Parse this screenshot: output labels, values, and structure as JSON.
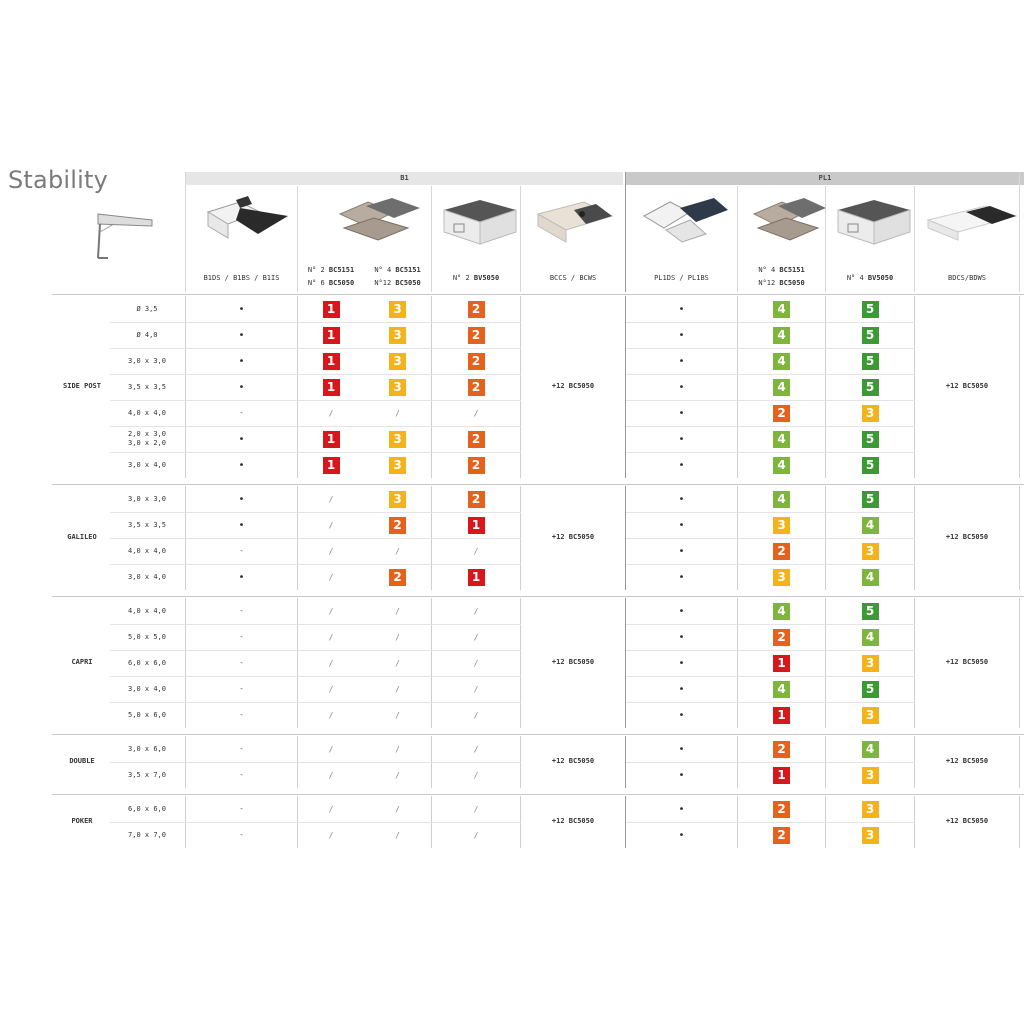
{
  "title": "Stability",
  "colors": {
    "1": "#d9161c",
    "2": "#e4621b",
    "3": "#f4b319",
    "4": "#7db63a",
    "5": "#3c9a34"
  },
  "groups": {
    "b1": "B1",
    "pl1": "PL1"
  },
  "columns": {
    "b1ds": "B1DS / B1BS / B1IS",
    "c2a": "N° 2 ",
    "c2b": "BC5151",
    "c2c": "N° 6 ",
    "c2d": "BC5050",
    "c3a": "N° 4 ",
    "c3b": "BC5151",
    "c3c": "N°12 ",
    "c3d": "BC5050",
    "c4a": "N° 2 ",
    "c4b": "BV5050",
    "bccs": "BCCS / BCWS",
    "pl1ds": "PL1DS / PL1BS",
    "c6a": "N° 4 ",
    "c6b": "BC5151",
    "c6c": "N°12 ",
    "c6d": "BC5050",
    "c7a": "N° 4 ",
    "c7b": "BV5050",
    "bdcs": "BDCS/BDWS"
  },
  "models": [
    {
      "name": "SIDE POST",
      "merged": "+12 BC5050",
      "merged_pl": "+12 BC5050",
      "rows": [
        {
          "size": "Ø 3,5",
          "c1": "•",
          "c2": "1",
          "c3": "3",
          "c4": "2",
          "c5": "•",
          "c6": "4",
          "c7": "5"
        },
        {
          "size": "Ø 4,0",
          "c1": "•",
          "c2": "1",
          "c3": "3",
          "c4": "2",
          "c5": "•",
          "c6": "4",
          "c7": "5"
        },
        {
          "size": "3,0 x 3,0",
          "c1": "•",
          "c2": "1",
          "c3": "3",
          "c4": "2",
          "c5": "•",
          "c6": "4",
          "c7": "5"
        },
        {
          "size": "3,5 x 3,5",
          "c1": "•",
          "c2": "1",
          "c3": "3",
          "c4": "2",
          "c5": "•",
          "c6": "4",
          "c7": "5"
        },
        {
          "size": "4,0 x 4,0",
          "c1": "-",
          "c2": "/",
          "c3": "/",
          "c4": "/",
          "c5": "•",
          "c6": "2",
          "c7": "3"
        },
        {
          "size": "2,0 x 3,0",
          "size2": "3,0 x 2,0",
          "c1": "•",
          "c2": "1",
          "c3": "3",
          "c4": "2",
          "c5": "•",
          "c6": "4",
          "c7": "5"
        },
        {
          "size": "3,0 x 4,0",
          "c1": "•",
          "c2": "1",
          "c3": "3",
          "c4": "2",
          "c5": "•",
          "c6": "4",
          "c7": "5"
        }
      ]
    },
    {
      "name": "GALILEO",
      "merged": "+12 BC5050",
      "merged_pl": "+12 BC5050",
      "rows": [
        {
          "size": "3,0 x 3,0",
          "c1": "•",
          "c2": "/",
          "c3": "3",
          "c4": "2",
          "c5": "•",
          "c6": "4",
          "c7": "5"
        },
        {
          "size": "3,5 x 3,5",
          "c1": "•",
          "c2": "/",
          "c3": "2",
          "c4": "1",
          "c5": "•",
          "c6": "3",
          "c7": "4"
        },
        {
          "size": "4,0 x 4,0",
          "c1": "-",
          "c2": "/",
          "c3": "/",
          "c4": "/",
          "c5": "•",
          "c6": "2",
          "c7": "3"
        },
        {
          "size": "3,0 x 4,0",
          "c1": "•",
          "c2": "/",
          "c3": "2",
          "c4": "1",
          "c5": "•",
          "c6": "3",
          "c7": "4"
        }
      ]
    },
    {
      "name": "CAPRI",
      "merged": "+12 BC5050",
      "merged_pl": "+12 BC5050",
      "rows": [
        {
          "size": "4,0 x 4,0",
          "c1": "-",
          "c2": "/",
          "c3": "/",
          "c4": "/",
          "c5": "•",
          "c6": "4",
          "c7": "5"
        },
        {
          "size": "5,0 x 5,0",
          "c1": "-",
          "c2": "/",
          "c3": "/",
          "c4": "/",
          "c5": "•",
          "c6": "2",
          "c7": "4"
        },
        {
          "size": "6,0 x 6,0",
          "c1": "-",
          "c2": "/",
          "c3": "/",
          "c4": "/",
          "c5": "•",
          "c6": "1",
          "c7": "3"
        },
        {
          "size": "3,0 x 4,0",
          "c1": "-",
          "c2": "/",
          "c3": "/",
          "c4": "/",
          "c5": "•",
          "c6": "4",
          "c7": "5"
        },
        {
          "size": "5,0 x 6,0",
          "c1": "-",
          "c2": "/",
          "c3": "/",
          "c4": "/",
          "c5": "•",
          "c6": "1",
          "c7": "3"
        }
      ]
    },
    {
      "name": "DOUBLE",
      "merged": "+12 BC5050",
      "merged_pl": "+12 BC5050",
      "rows": [
        {
          "size": "3,0 x 6,0",
          "c1": "-",
          "c2": "/",
          "c3": "/",
          "c4": "/",
          "c5": "•",
          "c6": "2",
          "c7": "4"
        },
        {
          "size": "3,5 x 7,0",
          "c1": "-",
          "c2": "/",
          "c3": "/",
          "c4": "/",
          "c5": "•",
          "c6": "1",
          "c7": "3"
        }
      ]
    },
    {
      "name": "POKER",
      "merged": "+12 BC5050",
      "merged_pl": "+12 BC5050",
      "rows": [
        {
          "size": "6,0 x 6,0",
          "c1": "-",
          "c2": "/",
          "c3": "/",
          "c4": "/",
          "c5": "•",
          "c6": "2",
          "c7": "3"
        },
        {
          "size": "7,0 x 7,0",
          "c1": "-",
          "c2": "/",
          "c3": "/",
          "c4": "/",
          "c5": "•",
          "c6": "2",
          "c7": "3"
        }
      ]
    }
  ]
}
